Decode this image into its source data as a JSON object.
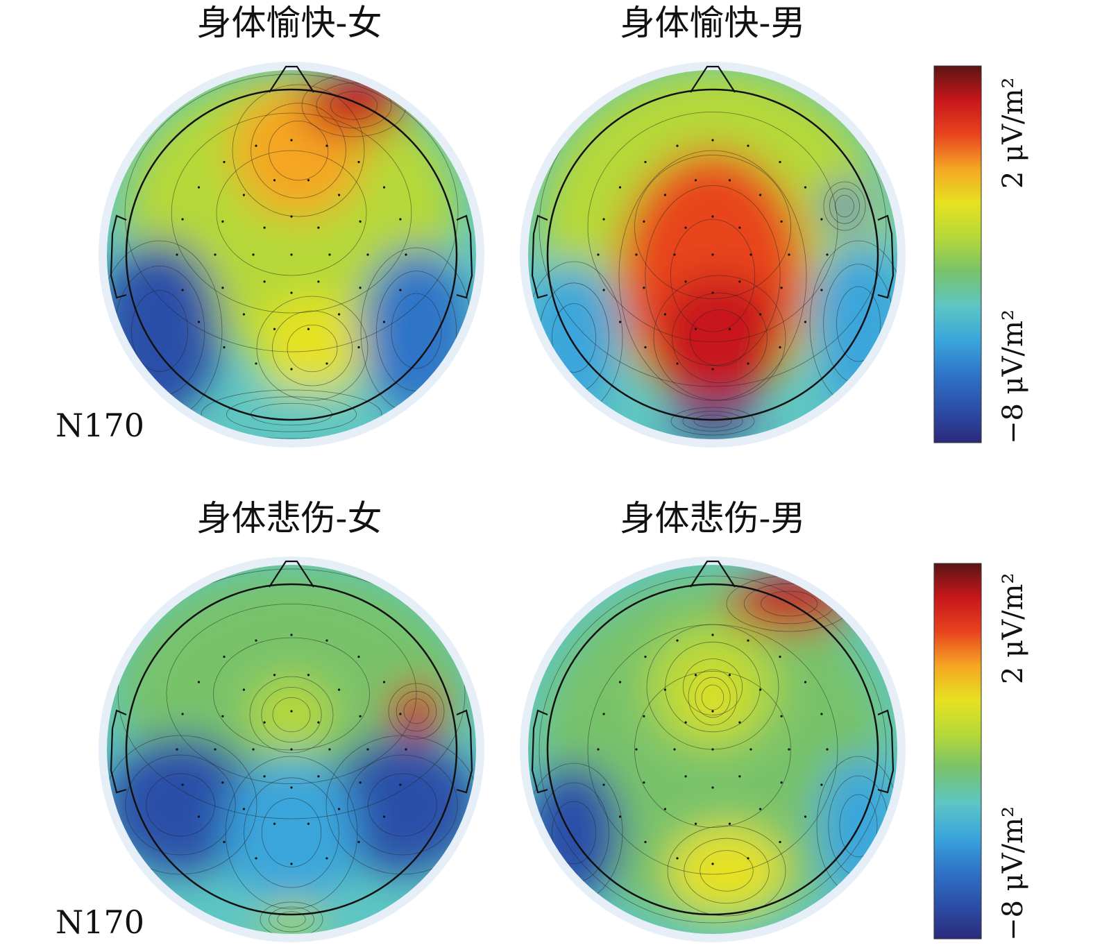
{
  "panels": [
    {
      "id": "happy-female",
      "title": "身体愉快-女",
      "window_label": "N170"
    },
    {
      "id": "happy-male",
      "title": "身体愉快-男",
      "window_label": ""
    },
    {
      "id": "sad-female",
      "title": "身体悲伤-女",
      "window_label": "N170"
    },
    {
      "id": "sad-male",
      "title": "身体悲伤-男",
      "window_label": ""
    }
  ],
  "colorbars": [
    {
      "high_label": "2 μV/m²",
      "low_label": "−8 μV/m²"
    },
    {
      "high_label": "2 μV/m²",
      "low_label": "−8 μV/m²"
    }
  ],
  "colorscale": [
    "#2b2a7a",
    "#2c4fa8",
    "#2f74c8",
    "#3aa6dc",
    "#5ec6c2",
    "#78c26a",
    "#b6d838",
    "#e6e221",
    "#f5a623",
    "#e8441f",
    "#c8161b",
    "#5a1515"
  ],
  "colors": {
    "mask": "#e6eef8",
    "outline": "#111111"
  }
}
